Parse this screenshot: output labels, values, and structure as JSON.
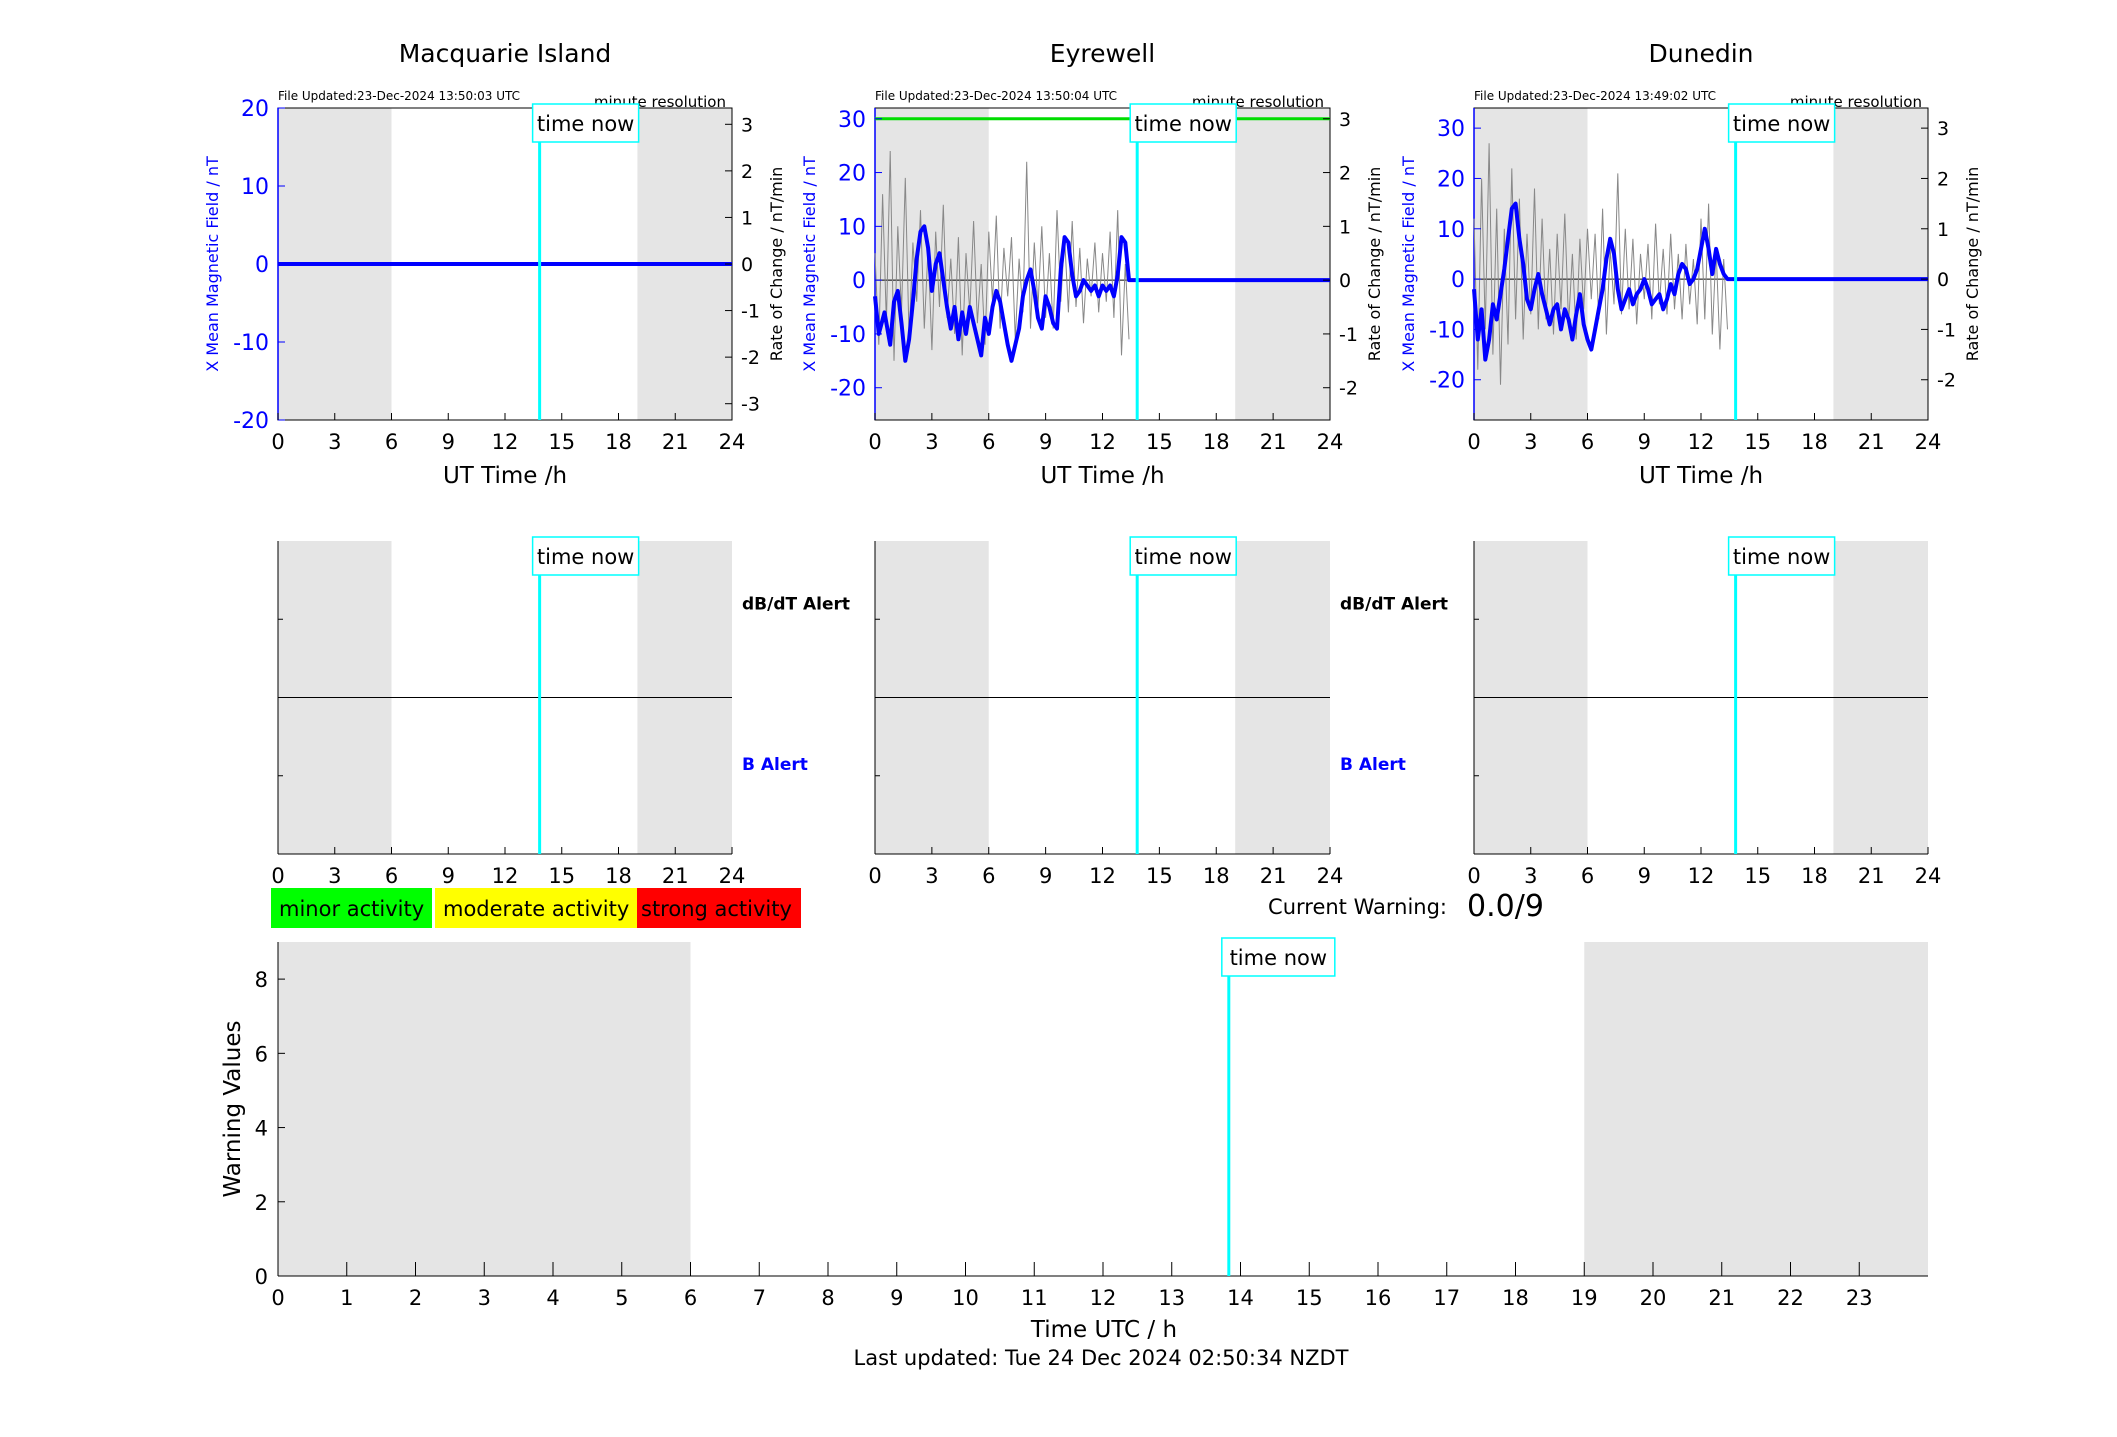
{
  "chart_data": [
    {
      "type": "line",
      "title": "Macquarie Island",
      "file_updated": "File Updated:23-Dec-2024 13:50:03 UTC",
      "resolution": "minute resolution",
      "xlabel": "UT Time /h",
      "ylabel": "X Mean Magnetic Field / nT",
      "ylabel_right": "Rate of Change / nT/min",
      "xlim": [
        0,
        24
      ],
      "ylim": [
        -20,
        20
      ],
      "yticks": [
        -20,
        -10,
        0,
        10,
        20
      ],
      "ylim_right": [
        -3.35,
        3.35
      ],
      "yticks_right": [
        -3,
        -2,
        -1,
        0,
        1,
        2,
        3
      ],
      "xticks": [
        0,
        3,
        6,
        9,
        12,
        15,
        18,
        21,
        24
      ],
      "shaded_hours": [
        [
          0,
          6
        ],
        [
          19,
          24
        ]
      ],
      "now_hour": 13.83,
      "now_label": "time now",
      "threshold": null,
      "series": [
        {
          "role": "x-mean",
          "color": "#0000ff",
          "x": [
            0,
            24
          ],
          "y": [
            0,
            0
          ]
        }
      ]
    },
    {
      "type": "line",
      "title": "Eyrewell",
      "file_updated": "File Updated:23-Dec-2024 13:50:04 UTC",
      "resolution": "minute resolution",
      "xlabel": "UT Time /h",
      "ylabel": "X Mean Magnetic Field / nT",
      "ylabel_right": "Rate of Change / nT/min",
      "xlim": [
        0,
        24
      ],
      "ylim": [
        -26,
        32
      ],
      "yticks": [
        -20,
        -10,
        0,
        10,
        20,
        30
      ],
      "ylim_right": [
        -2.6,
        3.2
      ],
      "yticks_right": [
        -2,
        -1,
        0,
        1,
        2,
        3
      ],
      "xticks": [
        0,
        3,
        6,
        9,
        12,
        15,
        18,
        21,
        24
      ],
      "shaded_hours": [
        [
          0,
          6
        ],
        [
          19,
          24
        ]
      ],
      "now_hour": 13.83,
      "now_label": "time now",
      "threshold": {
        "value": 30,
        "color": "#00dd00"
      },
      "series": [
        {
          "role": "x-mean",
          "color": "#0000ff",
          "x": [
            0,
            0.2,
            0.5,
            0.8,
            1.0,
            1.2,
            1.4,
            1.6,
            1.8,
            2.0,
            2.2,
            2.4,
            2.6,
            2.8,
            3.0,
            3.2,
            3.4,
            3.6,
            3.8,
            4.0,
            4.2,
            4.4,
            4.6,
            4.8,
            5.0,
            5.2,
            5.4,
            5.6,
            5.8,
            6.0,
            6.2,
            6.4,
            6.6,
            6.8,
            7.0,
            7.2,
            7.4,
            7.6,
            7.8,
            8.0,
            8.2,
            8.4,
            8.6,
            8.8,
            9.0,
            9.2,
            9.4,
            9.6,
            9.8,
            10.0,
            10.2,
            10.4,
            10.6,
            10.8,
            11.0,
            11.2,
            11.4,
            11.6,
            11.8,
            12.0,
            12.2,
            12.4,
            12.6,
            12.8,
            13.0,
            13.2,
            13.4,
            13.6,
            13.83,
            24
          ],
          "y": [
            -3,
            -10,
            -6,
            -12,
            -4,
            -2,
            -8,
            -15,
            -11,
            -4,
            4,
            9,
            10,
            6,
            -2,
            3,
            5,
            0,
            -5,
            -9,
            -5,
            -11,
            -6,
            -10,
            -5,
            -8,
            -11,
            -14,
            -7,
            -10,
            -5,
            -2,
            -4,
            -8,
            -12,
            -15,
            -12,
            -9,
            -3,
            0,
            2,
            -2,
            -7,
            -9,
            -3,
            -5,
            -8,
            -9,
            2,
            8,
            7,
            1,
            -3,
            -2,
            0,
            -1,
            -2,
            -1,
            -3,
            -1,
            -2,
            -1,
            -3,
            1,
            8,
            7,
            0,
            0,
            0,
            0
          ]
        },
        {
          "role": "rate-of-change",
          "color": "#888888",
          "axis": "right",
          "x": [
            0.0,
            0.2,
            0.4,
            0.6,
            0.8,
            1.0,
            1.2,
            1.4,
            1.6,
            1.8,
            2.0,
            2.2,
            2.4,
            2.6,
            2.8,
            3.0,
            3.2,
            3.4,
            3.6,
            3.8,
            4.0,
            4.2,
            4.4,
            4.6,
            4.8,
            5.0,
            5.2,
            5.4,
            5.6,
            5.8,
            6.0,
            6.2,
            6.4,
            6.6,
            6.8,
            7.0,
            7.2,
            7.4,
            7.6,
            7.8,
            8.0,
            8.2,
            8.4,
            8.6,
            8.8,
            9.0,
            9.2,
            9.4,
            9.6,
            9.8,
            10.0,
            10.2,
            10.4,
            10.6,
            10.8,
            11.0,
            11.2,
            11.4,
            11.6,
            11.8,
            12.0,
            12.2,
            12.4,
            12.6,
            12.8,
            13.0,
            13.2,
            13.4
          ],
          "y": [
            0.5,
            -1.2,
            1.6,
            -0.8,
            2.4,
            -1.5,
            1.0,
            -0.6,
            1.9,
            -1.1,
            0.7,
            -0.4,
            1.3,
            -0.9,
            0.6,
            -1.3,
            0.9,
            -0.5,
            1.4,
            -0.7,
            0.4,
            -1.0,
            0.8,
            -1.4,
            0.5,
            -0.6,
            1.1,
            -0.8,
            0.3,
            -1.2,
            0.9,
            -0.4,
            1.2,
            -0.9,
            0.6,
            -0.3,
            0.8,
            -1.1,
            0.4,
            -0.6,
            2.2,
            -0.9,
            0.7,
            -0.5,
            1.0,
            -0.7,
            0.5,
            -0.9,
            1.3,
            -0.4,
            0.8,
            -0.6,
            1.1,
            -0.5,
            0.6,
            -0.8,
            0.4,
            -0.3,
            0.7,
            -0.6,
            0.5,
            -0.4,
            0.9,
            -0.7,
            1.3,
            -1.4,
            0.3,
            -1.1
          ]
        }
      ]
    },
    {
      "type": "line",
      "title": "Dunedin",
      "file_updated": "File Updated:23-Dec-2024 13:49:02 UTC",
      "resolution": "minute resolution",
      "xlabel": "UT Time /h",
      "ylabel": "X Mean Magnetic Field / nT",
      "ylabel_right": "Rate of Change / nT/min",
      "xlim": [
        0,
        24
      ],
      "ylim": [
        -28,
        34
      ],
      "yticks": [
        -20,
        -10,
        0,
        10,
        20,
        30
      ],
      "ylim_right": [
        -2.8,
        3.4
      ],
      "yticks_right": [
        -2,
        -1,
        0,
        1,
        2,
        3
      ],
      "xticks": [
        0,
        3,
        6,
        9,
        12,
        15,
        18,
        21,
        24
      ],
      "shaded_hours": [
        [
          0,
          6
        ],
        [
          19,
          24
        ]
      ],
      "now_hour": 13.83,
      "now_label": "time now",
      "threshold": null,
      "series": [
        {
          "role": "x-mean",
          "color": "#0000ff",
          "x": [
            0,
            0.2,
            0.4,
            0.6,
            0.8,
            1.0,
            1.2,
            1.4,
            1.6,
            1.8,
            2.0,
            2.2,
            2.4,
            2.6,
            2.8,
            3.0,
            3.2,
            3.4,
            3.6,
            3.8,
            4.0,
            4.2,
            4.4,
            4.6,
            4.8,
            5.0,
            5.2,
            5.4,
            5.6,
            5.8,
            6.0,
            6.2,
            6.4,
            6.6,
            6.8,
            7.0,
            7.2,
            7.4,
            7.6,
            7.8,
            8.0,
            8.2,
            8.4,
            8.6,
            8.8,
            9.0,
            9.2,
            9.4,
            9.6,
            9.8,
            10.0,
            10.2,
            10.4,
            10.6,
            10.8,
            11.0,
            11.2,
            11.4,
            11.6,
            11.8,
            12.0,
            12.2,
            12.4,
            12.6,
            12.8,
            13.0,
            13.2,
            13.4,
            13.6,
            13.83,
            24
          ],
          "y": [
            -2,
            -12,
            -6,
            -16,
            -12,
            -5,
            -8,
            -3,
            2,
            8,
            14,
            15,
            8,
            3,
            -4,
            -6,
            -2,
            1,
            -3,
            -6,
            -9,
            -6,
            -5,
            -10,
            -6,
            -8,
            -12,
            -7,
            -3,
            -9,
            -12,
            -14,
            -10,
            -6,
            -2,
            4,
            8,
            5,
            -2,
            -6,
            -4,
            -2,
            -5,
            -3,
            -2,
            0,
            -2,
            -5,
            -4,
            -3,
            -6,
            -4,
            -1,
            -3,
            1,
            3,
            2,
            -1,
            0,
            2,
            6,
            10,
            6,
            1,
            6,
            3,
            1,
            0,
            0,
            0,
            0
          ]
        },
        {
          "role": "rate-of-change",
          "color": "#888888",
          "axis": "right",
          "x": [
            0.0,
            0.2,
            0.4,
            0.6,
            0.8,
            1.0,
            1.2,
            1.4,
            1.6,
            1.8,
            2.0,
            2.2,
            2.4,
            2.6,
            2.8,
            3.0,
            3.2,
            3.4,
            3.6,
            3.8,
            4.0,
            4.2,
            4.4,
            4.6,
            4.8,
            5.0,
            5.2,
            5.4,
            5.6,
            5.8,
            6.0,
            6.2,
            6.4,
            6.6,
            6.8,
            7.0,
            7.2,
            7.4,
            7.6,
            7.8,
            8.0,
            8.2,
            8.4,
            8.6,
            8.8,
            9.0,
            9.2,
            9.4,
            9.6,
            9.8,
            10.0,
            10.2,
            10.4,
            10.6,
            10.8,
            11.0,
            11.2,
            11.4,
            11.6,
            11.8,
            12.0,
            12.2,
            12.4,
            12.6,
            12.8,
            13.0,
            13.2,
            13.4
          ],
          "y": [
            1.2,
            -1.8,
            2.0,
            -1.0,
            2.7,
            -1.5,
            1.4,
            -2.1,
            1.0,
            -1.3,
            2.2,
            -0.8,
            1.6,
            -1.2,
            0.9,
            -0.7,
            1.8,
            -1.0,
            1.2,
            -0.8,
            0.6,
            -1.1,
            0.9,
            -0.6,
            1.3,
            -0.9,
            0.5,
            -1.2,
            0.8,
            -0.6,
            1.0,
            -0.4,
            0.9,
            -0.8,
            1.4,
            -1.1,
            0.6,
            -0.5,
            2.1,
            -0.7,
            1.0,
            -0.6,
            0.8,
            -0.9,
            0.5,
            -0.4,
            0.7,
            -0.8,
            1.1,
            -0.5,
            0.6,
            -0.7,
            0.9,
            -0.6,
            0.5,
            -0.8,
            0.7,
            -0.5,
            0.4,
            -0.9,
            1.2,
            -0.8,
            1.5,
            -1.1,
            0.6,
            -1.4,
            0.4,
            -1.0
          ]
        }
      ]
    },
    {
      "type": "line",
      "labels": {
        "top": "dB/dT Alert",
        "bottom": "B Alert"
      },
      "xlim": [
        0,
        24
      ],
      "xticks": [
        0,
        3,
        6,
        9,
        12,
        15,
        18,
        21,
        24
      ],
      "shaded_hours": [
        [
          0,
          6
        ],
        [
          19,
          24
        ]
      ],
      "now_hour": 13.83,
      "now_label": "time now"
    },
    {
      "type": "line",
      "labels": {
        "top": "dB/dT Alert",
        "bottom": "B Alert"
      },
      "xlim": [
        0,
        24
      ],
      "xticks": [
        0,
        3,
        6,
        9,
        12,
        15,
        18,
        21,
        24
      ],
      "shaded_hours": [
        [
          0,
          6
        ],
        [
          19,
          24
        ]
      ],
      "now_hour": 13.83,
      "now_label": "time now"
    },
    {
      "type": "line",
      "xlim": [
        0,
        24
      ],
      "xticks": [
        0,
        3,
        6,
        9,
        12,
        15,
        18,
        21,
        24
      ],
      "shaded_hours": [
        [
          0,
          6
        ],
        [
          19,
          24
        ]
      ],
      "now_hour": 13.83,
      "now_label": "time now"
    },
    {
      "type": "bar",
      "xlabel": "Time UTC / h",
      "ylabel": "Warning Values",
      "xlim": [
        0,
        24
      ],
      "ylim": [
        0,
        9
      ],
      "xticks": [
        0,
        1,
        2,
        3,
        4,
        5,
        6,
        7,
        8,
        9,
        10,
        11,
        12,
        13,
        14,
        15,
        16,
        17,
        18,
        19,
        20,
        21,
        22,
        23
      ],
      "yticks": [
        0,
        2,
        4,
        6,
        8
      ],
      "shaded_hours": [
        [
          0,
          6
        ],
        [
          19,
          24
        ]
      ],
      "now_hour": 13.83,
      "now_label": "time now",
      "values": []
    }
  ],
  "legend": [
    {
      "label": "minor activity",
      "color": "#00ff00"
    },
    {
      "label": "moderate activity",
      "color": "#ffff00"
    },
    {
      "label": "strong activity",
      "color": "#ff0000"
    }
  ],
  "current_warning": {
    "label": "Current Warning:",
    "value": "0.0/9"
  },
  "footer": "Last updated: Tue 24 Dec 2024 02:50:34 NZDT",
  "colors": {
    "shade": "#e5e5e5",
    "now_line": "#00ffff",
    "main_line": "#0000ff"
  }
}
